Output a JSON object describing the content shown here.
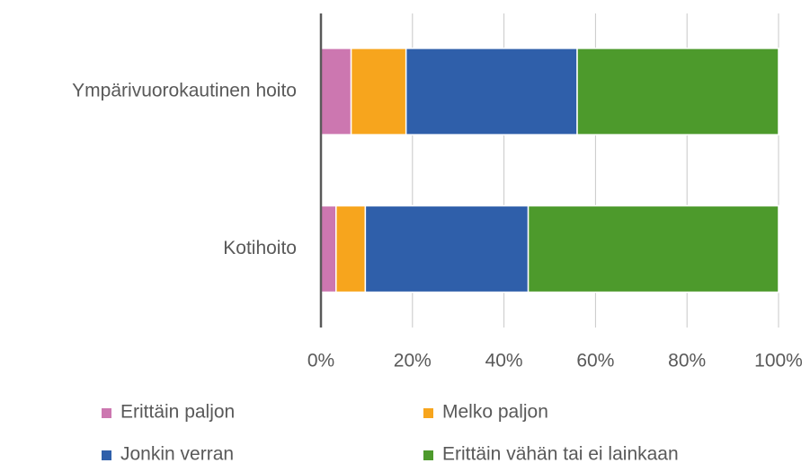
{
  "chart_data": {
    "type": "stacked_bar_horizontal",
    "categories": [
      "Ympärivuorokautinen hoito",
      "Kotihoito"
    ],
    "series": [
      {
        "name": "Erittäin paljon",
        "color": "#cc77b0",
        "values": [
          6.6,
          3.3
        ]
      },
      {
        "name": "Melko paljon",
        "color": "#f7a51d",
        "values": [
          12,
          6.4
        ]
      },
      {
        "name": "Jonkin verran",
        "color": "#2f5faa",
        "values": [
          37.4,
          35.6
        ]
      },
      {
        "name": "Erittäin vähän tai ei lainkaan",
        "color": "#4d9a2c",
        "values": [
          44,
          54.7
        ]
      }
    ],
    "xlim": [
      0,
      100
    ],
    "xticks": [
      {
        "value": 0,
        "label": "0%"
      },
      {
        "value": 20,
        "label": "20%"
      },
      {
        "value": 40,
        "label": "40%"
      },
      {
        "value": 60,
        "label": "60%"
      },
      {
        "value": 80,
        "label": "80%"
      },
      {
        "value": 100,
        "label": "100%"
      }
    ],
    "grid": true,
    "legend": "bottom"
  }
}
